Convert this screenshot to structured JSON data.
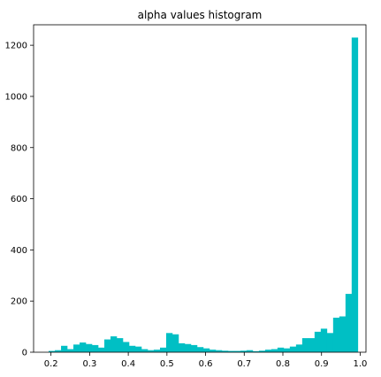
{
  "chart_data": {
    "type": "bar",
    "title": "alpha values histogram",
    "xlabel": "",
    "ylabel": "",
    "xlim": [
      0.155,
      1.015
    ],
    "ylim": [
      0,
      1280
    ],
    "x_ticks": [
      "0.2",
      "0.3",
      "0.4",
      "0.5",
      "0.6",
      "0.7",
      "0.8",
      "0.9",
      "1.0"
    ],
    "y_ticks": [
      "0",
      "200",
      "400",
      "600",
      "800",
      "1000",
      "1200"
    ],
    "bin_width": 0.016,
    "bin_starts": [
      0.194,
      0.21,
      0.226,
      0.242,
      0.258,
      0.274,
      0.29,
      0.306,
      0.322,
      0.338,
      0.354,
      0.37,
      0.386,
      0.402,
      0.418,
      0.434,
      0.45,
      0.466,
      0.482,
      0.498,
      0.514,
      0.53,
      0.546,
      0.562,
      0.578,
      0.594,
      0.61,
      0.626,
      0.642,
      0.658,
      0.674,
      0.69,
      0.706,
      0.722,
      0.738,
      0.754,
      0.77,
      0.786,
      0.802,
      0.818,
      0.834,
      0.85,
      0.866,
      0.882,
      0.898,
      0.914,
      0.93,
      0.946,
      0.962,
      0.978
    ],
    "values": [
      5,
      8,
      25,
      12,
      30,
      38,
      32,
      28,
      18,
      50,
      62,
      55,
      40,
      25,
      22,
      12,
      8,
      10,
      18,
      75,
      70,
      35,
      32,
      28,
      20,
      15,
      10,
      8,
      6,
      5,
      5,
      6,
      8,
      4,
      6,
      10,
      12,
      18,
      15,
      22,
      30,
      55,
      55,
      80,
      92,
      75,
      135,
      140,
      228,
      1230
    ],
    "colors": {
      "bar": "#00bfc4",
      "axis": "#000000",
      "background": "#ffffff"
    },
    "grid": false,
    "legend": "none"
  }
}
